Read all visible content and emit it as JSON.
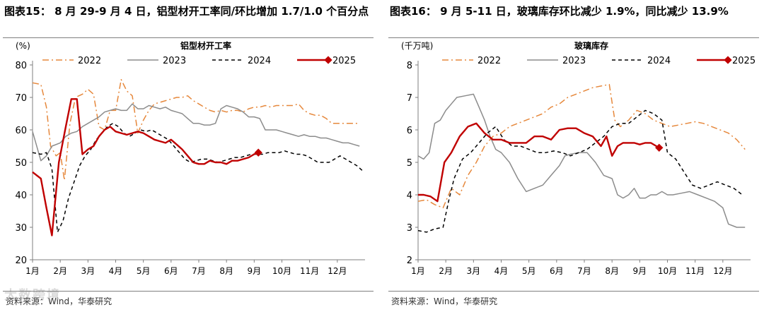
{
  "watermark": "大数跨境",
  "charts": [
    {
      "figure_title": "图表15： 8 月 29-9 月 4 日，铝型材开工率同/环比增加 1.7/1.0 个百分点",
      "source": "资料来源：Wind，华泰研究",
      "chart_data": {
        "type": "line",
        "title": "铝型材开工率",
        "unit_label": "(%)",
        "ylim": [
          20,
          80
        ],
        "yticks": [
          "20",
          "30",
          "40",
          "50",
          "60",
          "70",
          "80"
        ],
        "x_range": [
          1,
          13
        ],
        "xticks": [
          "1月",
          "2月",
          "3月",
          "4月",
          "5月",
          "6月",
          "7月",
          "8月",
          "9月",
          "10月",
          "11月",
          "12月"
        ],
        "series": [
          {
            "name": "2022",
            "color": "#e6883c",
            "style": "dashdot",
            "x": [
              1,
              1.3,
              1.5,
              1.65,
              1.85,
              2.0,
              2.15,
              2.35,
              2.55,
              2.8,
              3.0,
              3.2,
              3.4,
              3.6,
              3.8,
              4.0,
              4.2,
              4.4,
              4.6,
              4.8,
              5.0,
              5.2,
              5.4,
              5.6,
              5.8,
              6.0,
              6.2,
              6.4,
              6.6,
              6.8,
              7.0,
              7.2,
              7.4,
              7.6,
              7.8,
              8.0,
              8.2,
              8.4,
              8.6,
              8.8,
              9.0,
              9.2,
              9.4,
              9.6,
              9.8,
              10.0,
              10.2,
              10.4,
              10.6,
              10.8,
              11.0,
              11.2,
              11.4,
              11.6,
              11.8,
              12.0,
              12.2,
              12.4,
              12.6,
              12.8
            ],
            "y": [
              74.5,
              74,
              67,
              55,
              52,
              53,
              44.5,
              62,
              70,
              71,
              72.5,
              71,
              61,
              60,
              66,
              66,
              75.5,
              72,
              70.5,
              59,
              63,
              66,
              68,
              68.5,
              69,
              69.5,
              70,
              70,
              70.5,
              69,
              68,
              67,
              66,
              65.5,
              66,
              65.5,
              66,
              66,
              65.5,
              66.5,
              67,
              67,
              67.5,
              67,
              67.5,
              67.5,
              67.5,
              67.5,
              68,
              66,
              65,
              64.5,
              64.5,
              63.5,
              62,
              62,
              62,
              62,
              62,
              62
            ]
          },
          {
            "name": "2023",
            "color": "#8c8c8c",
            "style": "solid",
            "x": [
              1,
              1.3,
              1.5,
              1.7,
              2.0,
              2.2,
              2.4,
              2.6,
              2.8,
              3.0,
              3.2,
              3.4,
              3.6,
              3.8,
              4.0,
              4.2,
              4.4,
              4.6,
              4.8,
              5.0,
              5.2,
              5.4,
              5.6,
              5.8,
              6.0,
              6.2,
              6.4,
              6.6,
              6.8,
              7.0,
              7.2,
              7.4,
              7.6,
              7.8,
              8.0,
              8.2,
              8.4,
              8.6,
              8.8,
              9.0,
              9.2,
              9.4,
              9.6,
              9.8,
              10.0,
              10.2,
              10.4,
              10.6,
              10.8,
              11.0,
              11.2,
              11.4,
              11.6,
              11.8,
              12.0,
              12.2,
              12.4,
              12.6,
              12.8
            ],
            "y": [
              59.5,
              50.5,
              52,
              55,
              56,
              58,
              59,
              59.5,
              61,
              62,
              63,
              64,
              65.5,
              66,
              66.5,
              66,
              66,
              68,
              66.5,
              66.5,
              67.5,
              67,
              66.5,
              67,
              66,
              65.5,
              65,
              63.5,
              62,
              62,
              61.5,
              61.5,
              62,
              66.5,
              67.5,
              67,
              66.5,
              65.5,
              64,
              64,
              63.5,
              60,
              60,
              60,
              59.5,
              59,
              58.5,
              58,
              58.5,
              58,
              58,
              57.5,
              57.5,
              57,
              56.5,
              56,
              56,
              55.5,
              55
            ]
          },
          {
            "name": "2024",
            "color": "#000000",
            "style": "dashed",
            "x": [
              1,
              1.3,
              1.5,
              1.7,
              1.9,
              2.1,
              2.3,
              2.5,
              2.7,
              2.9,
              3.1,
              3.3,
              3.5,
              3.7,
              3.9,
              4.1,
              4.3,
              4.5,
              4.7,
              4.9,
              5.1,
              5.3,
              5.5,
              5.7,
              5.9,
              6.1,
              6.3,
              6.5,
              6.7,
              6.9,
              7.1,
              7.3,
              7.5,
              7.7,
              7.9,
              8.1,
              8.3,
              8.5,
              8.7,
              8.9,
              9.1,
              9.3,
              9.5,
              9.7,
              9.9,
              10.1,
              10.3,
              10.5,
              10.7,
              10.9,
              11.1,
              11.3,
              11.5,
              11.7,
              11.9,
              12.1,
              12.3,
              12.5,
              12.7,
              12.9
            ],
            "y": [
              53,
              52.5,
              53,
              48,
              28.5,
              32,
              39,
              44,
              49,
              52,
              54,
              57,
              59,
              61,
              62,
              61,
              59,
              58,
              59,
              60,
              59.5,
              60,
              59,
              58,
              57,
              55,
              53,
              51,
              50,
              50.5,
              51,
              51,
              50.5,
              50,
              50.5,
              51,
              51.5,
              51.5,
              52,
              52.5,
              52.5,
              52.5,
              53,
              53,
              53,
              53.5,
              53,
              52.5,
              52.5,
              52,
              51,
              50,
              50,
              50,
              51,
              52,
              51,
              50,
              49,
              47.5
            ]
          },
          {
            "name": "2025",
            "color": "#c00000",
            "style": "solid",
            "marker_last": true,
            "x": [
              1,
              1.3,
              1.5,
              1.7,
              1.95,
              2.2,
              2.4,
              2.6,
              2.8,
              3.0,
              3.2,
              3.4,
              3.6,
              3.8,
              4.0,
              4.2,
              4.4,
              4.6,
              4.8,
              5.0,
              5.2,
              5.4,
              5.6,
              5.8,
              6.0,
              6.2,
              6.4,
              6.6,
              6.8,
              7.0,
              7.2,
              7.4,
              7.6,
              7.8,
              8.0,
              8.2,
              8.4,
              8.6,
              8.8,
              9.0,
              9.15
            ],
            "y": [
              47,
              45,
              36,
              27.5,
              50,
              61,
              69.5,
              69.5,
              52.5,
              54,
              55,
              58,
              60,
              61,
              59.5,
              59,
              58.5,
              59,
              59.5,
              59,
              58,
              57,
              56.5,
              56,
              57,
              55.5,
              54,
              52,
              50,
              49.5,
              49.5,
              50.5,
              50,
              50,
              49.5,
              50.5,
              50.5,
              51,
              51.5,
              52.5,
              53
            ]
          }
        ]
      }
    },
    {
      "figure_title": "图表16： 9 月 5-11 日，玻璃库存环比减少 1.9%，同比减少 13.9%",
      "source": "资料来源：Wind，华泰研究",
      "chart_data": {
        "type": "line",
        "title": "玻璃库存",
        "unit_label": "(千万吨)",
        "ylim": [
          2,
          8
        ],
        "yticks": [
          "2",
          "3",
          "4",
          "5",
          "6",
          "7",
          "8"
        ],
        "x_range": [
          1,
          13
        ],
        "xticks": [
          "1月",
          "2月",
          "3月",
          "4月",
          "5月",
          "6月",
          "7月",
          "8月",
          "9月",
          "10月",
          "11月",
          "12月"
        ],
        "series": [
          {
            "name": "2022",
            "color": "#e6883c",
            "style": "dashdot",
            "x": [
              1,
              1.3,
              1.6,
              1.9,
              2.2,
              2.5,
              2.8,
              3.1,
              3.4,
              3.7,
              4.0,
              4.3,
              4.6,
              4.9,
              5.2,
              5.5,
              5.8,
              6.1,
              6.4,
              6.7,
              7.0,
              7.3,
              7.6,
              7.9,
              8.1,
              8.3,
              8.6,
              8.9,
              9.2,
              9.5,
              9.8,
              10.1,
              10.4,
              10.7,
              11.0,
              11.3,
              11.6,
              11.9,
              12.2,
              12.5,
              12.8
            ],
            "y": [
              3.8,
              3.85,
              3.7,
              3.6,
              4.2,
              4.0,
              4.6,
              5.0,
              5.5,
              5.8,
              5.9,
              6.1,
              6.2,
              6.3,
              6.4,
              6.5,
              6.7,
              6.8,
              7.0,
              7.1,
              7.2,
              7.3,
              7.35,
              7.4,
              6.3,
              6.1,
              6.3,
              6.6,
              6.5,
              6.3,
              6.2,
              6.1,
              6.15,
              6.2,
              6.25,
              6.2,
              6.1,
              6.0,
              5.9,
              5.7,
              5.4
            ]
          },
          {
            "name": "2023",
            "color": "#8c8c8c",
            "style": "solid",
            "x": [
              1,
              1.2,
              1.4,
              1.6,
              1.8,
              2.0,
              2.2,
              2.4,
              2.7,
              3.0,
              3.2,
              3.4,
              3.6,
              3.8,
              4.0,
              4.3,
              4.6,
              4.9,
              5.2,
              5.5,
              5.8,
              6.1,
              6.3,
              6.5,
              6.8,
              7.1,
              7.4,
              7.7,
              8.0,
              8.2,
              8.4,
              8.6,
              8.8,
              9.0,
              9.2,
              9.4,
              9.6,
              9.8,
              10.0,
              10.2,
              10.5,
              10.8,
              11.1,
              11.4,
              11.7,
              12.0,
              12.2,
              12.5,
              12.8
            ],
            "y": [
              5.2,
              5.1,
              5.3,
              6.2,
              6.3,
              6.6,
              6.8,
              7.0,
              7.05,
              7.1,
              6.7,
              6.3,
              5.8,
              5.4,
              5.3,
              5.0,
              4.5,
              4.1,
              4.2,
              4.3,
              4.6,
              4.9,
              5.2,
              5.25,
              5.3,
              5.3,
              5.0,
              4.6,
              4.5,
              4.0,
              3.9,
              4.0,
              4.2,
              3.9,
              3.9,
              4.0,
              4.0,
              4.1,
              4.0,
              4.0,
              4.05,
              4.1,
              4.0,
              3.9,
              3.8,
              3.6,
              3.1,
              3.0,
              3.0
            ]
          },
          {
            "name": "2024",
            "color": "#000000",
            "style": "dashed",
            "x": [
              1,
              1.3,
              1.6,
              1.9,
              2.1,
              2.3,
              2.6,
              2.9,
              3.2,
              3.5,
              3.8,
              4.1,
              4.4,
              4.7,
              5.0,
              5.3,
              5.6,
              5.9,
              6.2,
              6.5,
              6.8,
              7.1,
              7.4,
              7.7,
              8.0,
              8.3,
              8.6,
              8.9,
              9.2,
              9.5,
              9.8,
              10.0,
              10.3,
              10.6,
              10.9,
              11.2,
              11.5,
              11.8,
              12.1,
              12.4,
              12.7
            ],
            "y": [
              2.9,
              2.85,
              2.95,
              3.0,
              3.8,
              4.5,
              5.1,
              5.3,
              5.6,
              5.9,
              6.1,
              5.7,
              5.5,
              5.5,
              5.4,
              5.3,
              5.3,
              5.35,
              5.3,
              5.2,
              5.3,
              5.4,
              5.6,
              5.8,
              6.1,
              6.2,
              6.2,
              6.4,
              6.6,
              6.5,
              6.3,
              5.3,
              5.1,
              4.7,
              4.3,
              4.2,
              4.3,
              4.4,
              4.3,
              4.2,
              4.0
            ]
          },
          {
            "name": "2025",
            "color": "#c00000",
            "style": "solid",
            "marker_last": true,
            "x": [
              1,
              1.2,
              1.45,
              1.7,
              1.95,
              2.2,
              2.5,
              2.8,
              3.1,
              3.4,
              3.7,
              4.0,
              4.3,
              4.6,
              4.9,
              5.2,
              5.5,
              5.8,
              6.1,
              6.4,
              6.7,
              7.0,
              7.3,
              7.6,
              7.8,
              8.0,
              8.2,
              8.4,
              8.6,
              8.8,
              9.0,
              9.2,
              9.4,
              9.6,
              9.7
            ],
            "y": [
              4.0,
              4.0,
              3.95,
              3.8,
              5.0,
              5.3,
              5.8,
              6.1,
              6.2,
              5.9,
              5.7,
              5.7,
              5.6,
              5.6,
              5.6,
              5.8,
              5.8,
              5.7,
              6.0,
              6.05,
              6.05,
              5.9,
              5.8,
              5.5,
              5.8,
              5.2,
              5.5,
              5.6,
              5.6,
              5.6,
              5.55,
              5.6,
              5.6,
              5.5,
              5.45
            ]
          }
        ]
      }
    }
  ]
}
